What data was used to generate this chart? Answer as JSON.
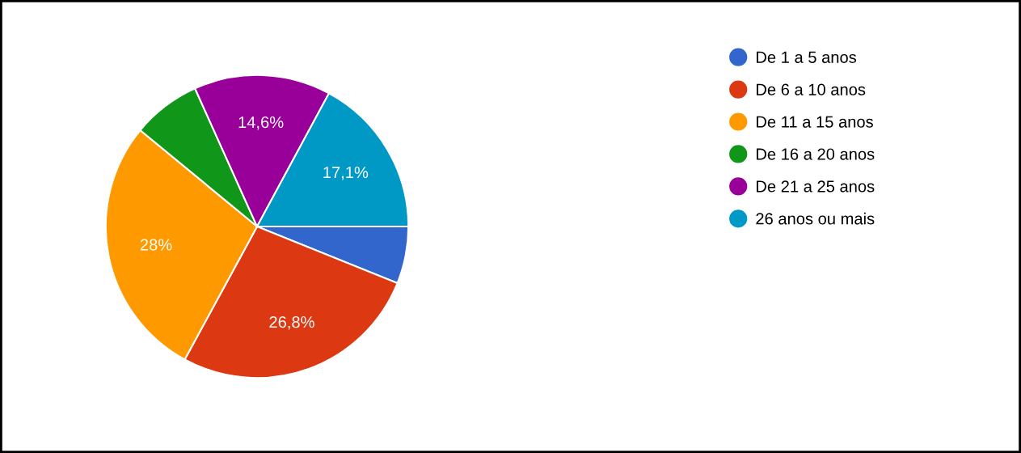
{
  "chart_data": {
    "type": "pie",
    "categories": [
      "De 1 a 5 anos",
      "De 6 a 10 anos",
      "De 11 a 15 anos",
      "De 16 a 20 anos",
      "De 21 a 25 anos",
      "26 anos ou mais"
    ],
    "values": [
      6.1,
      26.8,
      28,
      7.3,
      14.6,
      17.1
    ],
    "colors": [
      "#3366cc",
      "#dc3912",
      "#ff9900",
      "#109618",
      "#990099",
      "#0099c6"
    ],
    "value_labels": [
      null,
      "26,8%",
      "28%",
      null,
      "14,6%",
      "17,1%"
    ],
    "legend": "right"
  }
}
